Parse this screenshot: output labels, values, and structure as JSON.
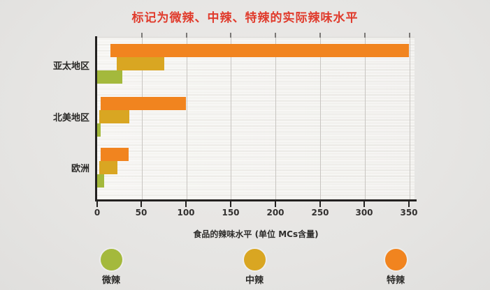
{
  "title": "标记为微辣、中辣、特辣的实际辣味水平",
  "title_color": "#e03b2c",
  "chart_data": {
    "type": "bar",
    "orientation": "horizontal-range",
    "title": "标记为微辣、中辣、特辣的实际辣味水平",
    "xlabel": "食品的辣味水平 (单位 MCs含量)",
    "x_ticks": [
      "0",
      "50",
      "100",
      "150",
      "200",
      "250",
      "300",
      "350"
    ],
    "x_tick_values": [
      0,
      50,
      100,
      150,
      200,
      250,
      300,
      350
    ],
    "xlim": [
      0,
      356
    ],
    "grid": true,
    "categories": [
      "亚太地区",
      "北美地区",
      "欧洲"
    ],
    "category_keys": [
      "asia-pacific",
      "north-america",
      "europe"
    ],
    "series": [
      {
        "name": "特辣",
        "key": "extra-spicy",
        "color": "#f1841f",
        "ranges": [
          [
            15,
            350
          ],
          [
            4,
            100
          ],
          [
            4,
            35
          ]
        ]
      },
      {
        "name": "中辣",
        "key": "medium-spicy",
        "color": "#d9a622",
        "ranges": [
          [
            22,
            75
          ],
          [
            2,
            36
          ],
          [
            2,
            22
          ]
        ]
      },
      {
        "name": "微辣",
        "key": "mild-spicy",
        "color": "#a4b93c",
        "ranges": [
          [
            0,
            28
          ],
          [
            0,
            4
          ],
          [
            0,
            8
          ]
        ]
      }
    ],
    "legend": {
      "position": "bottom",
      "items": [
        {
          "label": "微辣",
          "key": "mild",
          "color": "#a4b93c"
        },
        {
          "label": "中辣",
          "key": "medium",
          "color": "#d9a622"
        },
        {
          "label": "特辣",
          "key": "extra",
          "color": "#f1841f"
        }
      ]
    }
  }
}
